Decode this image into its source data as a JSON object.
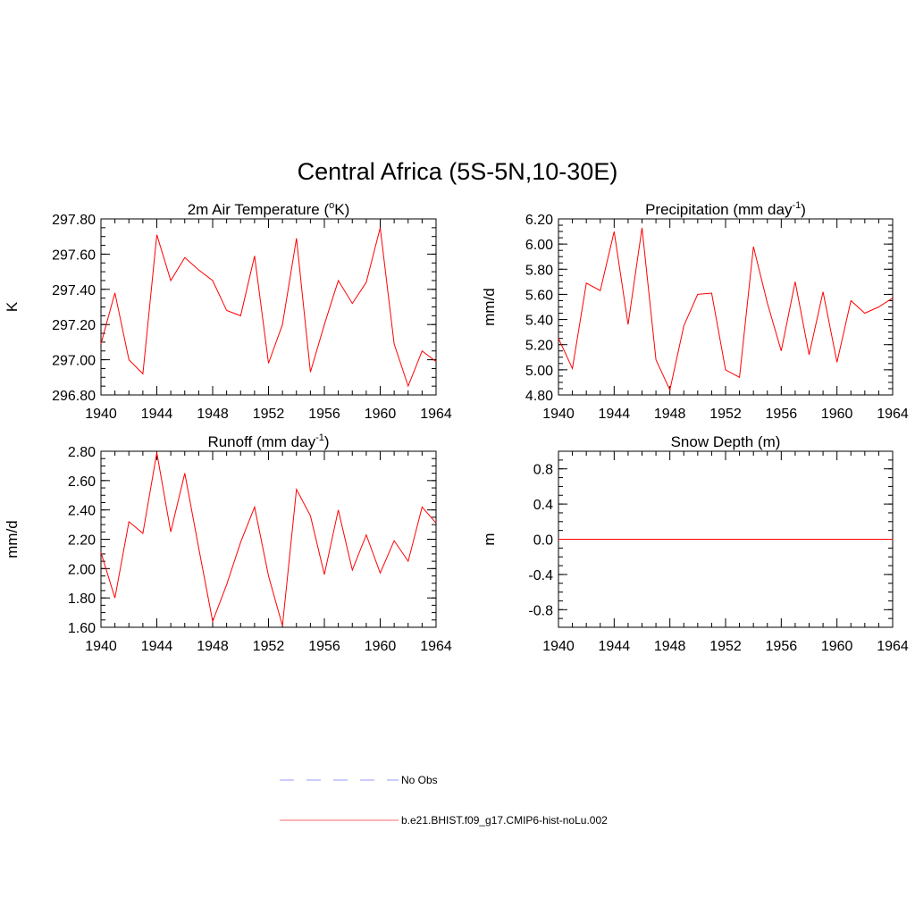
{
  "figure": {
    "title": "Central Africa (5S-5N,10-30E)"
  },
  "legend": {
    "items": [
      {
        "label": "No Obs",
        "style": "dashed",
        "color": "#9999ff"
      },
      {
        "label": "b.e21.BHIST.f09_g17.CMIP6-hist-noLu.002",
        "style": "solid",
        "color": "#ff6666"
      }
    ]
  },
  "series_color": "#ff0000",
  "chart_data": [
    {
      "type": "line",
      "title": "2m Air Temperature (",
      "title_sup": "o",
      "title_suffix": "K)",
      "ylabel": "K",
      "xlim": [
        1940,
        1964
      ],
      "ylim": [
        296.8,
        297.8
      ],
      "xticks": [
        1940,
        1944,
        1948,
        1952,
        1956,
        1960,
        1964
      ],
      "yticks": [
        "297.80",
        "297.60",
        "297.40",
        "297.20",
        "297.00",
        "296.80"
      ],
      "ytick_values": [
        297.8,
        297.6,
        297.4,
        297.2,
        297.0,
        296.8
      ],
      "yminor_step": 0.05,
      "x": [
        1940,
        1941,
        1942,
        1943,
        1944,
        1945,
        1946,
        1947,
        1948,
        1949,
        1950,
        1951,
        1952,
        1953,
        1954,
        1955,
        1956,
        1957,
        1958,
        1959,
        1960,
        1961,
        1962,
        1963,
        1964
      ],
      "y": [
        297.09,
        297.38,
        297.0,
        296.92,
        297.71,
        297.45,
        297.58,
        297.51,
        297.45,
        297.28,
        297.25,
        297.59,
        296.98,
        297.2,
        297.69,
        296.93,
        297.2,
        297.45,
        297.32,
        297.44,
        297.75,
        297.09,
        296.85,
        297.05,
        296.99
      ]
    },
    {
      "type": "line",
      "title": "Precipitation (mm day",
      "title_sup": "-1",
      "title_suffix": ")",
      "ylabel": "mm/d",
      "xlim": [
        1940,
        1964
      ],
      "ylim": [
        4.8,
        6.2
      ],
      "xticks": [
        1940,
        1944,
        1948,
        1952,
        1956,
        1960,
        1964
      ],
      "yticks": [
        "6.20",
        "6.00",
        "5.80",
        "5.60",
        "5.40",
        "5.20",
        "5.00",
        "4.80"
      ],
      "ytick_values": [
        6.2,
        6.0,
        5.8,
        5.6,
        5.4,
        5.2,
        5.0,
        4.8
      ],
      "yminor_step": 0.05,
      "x": [
        1940,
        1941,
        1942,
        1943,
        1944,
        1945,
        1946,
        1947,
        1948,
        1949,
        1950,
        1951,
        1952,
        1953,
        1954,
        1955,
        1956,
        1957,
        1958,
        1959,
        1960,
        1961,
        1962,
        1963,
        1964
      ],
      "y": [
        5.25,
        5.01,
        5.69,
        5.63,
        6.1,
        5.36,
        6.13,
        5.08,
        4.84,
        5.35,
        5.6,
        5.61,
        5.0,
        4.94,
        5.98,
        5.53,
        5.15,
        5.7,
        5.12,
        5.62,
        5.06,
        5.55,
        5.45,
        5.5,
        5.57
      ]
    },
    {
      "type": "line",
      "title": "Runoff (mm day",
      "title_sup": "-1",
      "title_suffix": ")",
      "ylabel": "mm/d",
      "xlim": [
        1940,
        1964
      ],
      "ylim": [
        1.6,
        2.8
      ],
      "xticks": [
        1940,
        1944,
        1948,
        1952,
        1956,
        1960,
        1964
      ],
      "yticks": [
        "2.80",
        "2.60",
        "2.40",
        "2.20",
        "2.00",
        "1.80",
        "1.60"
      ],
      "ytick_values": [
        2.8,
        2.6,
        2.4,
        2.2,
        2.0,
        1.8,
        1.6
      ],
      "yminor_step": 0.05,
      "x": [
        1940,
        1941,
        1942,
        1943,
        1944,
        1945,
        1946,
        1947,
        1948,
        1949,
        1950,
        1951,
        1952,
        1953,
        1954,
        1955,
        1956,
        1957,
        1958,
        1959,
        1960,
        1961,
        1962,
        1963,
        1964
      ],
      "y": [
        2.11,
        1.8,
        2.32,
        2.24,
        2.79,
        2.25,
        2.65,
        2.14,
        1.64,
        1.89,
        2.18,
        2.42,
        1.95,
        1.61,
        2.54,
        2.36,
        1.96,
        2.4,
        1.99,
        2.23,
        1.97,
        2.19,
        2.05,
        2.42,
        2.31
      ]
    },
    {
      "type": "line",
      "title": "Snow Depth (m)",
      "title_sup": "",
      "title_suffix": "",
      "ylabel": "m",
      "xlim": [
        1940,
        1964
      ],
      "ylim": [
        -1.0,
        1.0
      ],
      "xticks": [
        1940,
        1944,
        1948,
        1952,
        1956,
        1960,
        1964
      ],
      "yticks": [
        "0.8",
        "0.4",
        "0.0",
        "-0.4",
        "-0.8"
      ],
      "ytick_values": [
        0.8,
        0.4,
        0.0,
        -0.4,
        -0.8
      ],
      "yminor_step": 0.1,
      "x": [
        1940,
        1941,
        1942,
        1943,
        1944,
        1945,
        1946,
        1947,
        1948,
        1949,
        1950,
        1951,
        1952,
        1953,
        1954,
        1955,
        1956,
        1957,
        1958,
        1959,
        1960,
        1961,
        1962,
        1963,
        1964
      ],
      "y": [
        0,
        0,
        0,
        0,
        0,
        0,
        0,
        0,
        0,
        0,
        0,
        0,
        0,
        0,
        0,
        0,
        0,
        0,
        0,
        0,
        0,
        0,
        0,
        0,
        0
      ]
    }
  ]
}
